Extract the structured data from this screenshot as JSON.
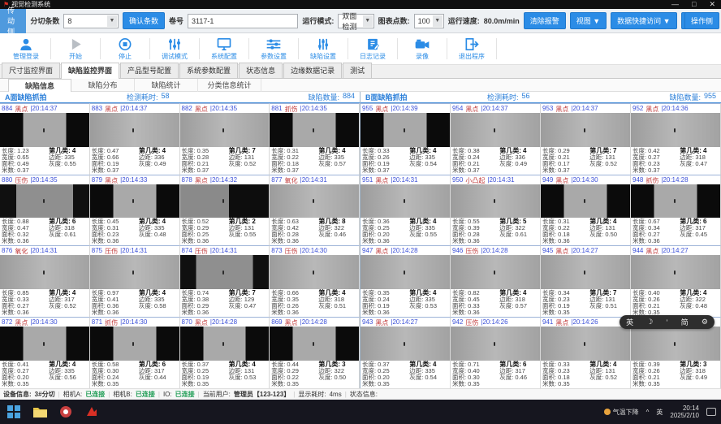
{
  "window": {
    "title": "视觉检测系统",
    "minimize": "—",
    "maximize": "□",
    "close": "✕"
  },
  "ribbon": {
    "side_left": "传动侧",
    "slit_label": "分切条数",
    "slit_value": "8",
    "confirm_btn": "确认条数",
    "roll_label": "卷号",
    "roll_value": "3117-1",
    "mode_label": "运行模式:",
    "mode_value": "双面检测",
    "points_label": "图表点数:",
    "points_value": "100",
    "speed_label": "运行速度:",
    "speed_value": "80.0m/min",
    "clear_alarm": "清除报警",
    "view_btn": "视图 ▼",
    "quick_btn": "数据快捷访问 ▼",
    "help_btn": "帮助 ▼",
    "side_right": "操作侧"
  },
  "toolbar": {
    "items": [
      {
        "label": "管理登录",
        "icon": "user-icon"
      },
      {
        "label": "开始",
        "icon": "play-icon"
      },
      {
        "label": "停止",
        "icon": "stop-icon"
      },
      {
        "label": "调试模式",
        "icon": "debug-sliders-icon"
      },
      {
        "label": "系统配置",
        "icon": "monitor-icon"
      },
      {
        "label": "参数设置",
        "icon": "h-sliders-icon"
      },
      {
        "label": "缺陷设置",
        "icon": "v-sliders-icon"
      },
      {
        "label": "日志记录",
        "icon": "log-icon"
      },
      {
        "label": "录像",
        "icon": "camera-icon"
      },
      {
        "label": "退出程序",
        "icon": "exit-icon"
      }
    ]
  },
  "tabs": {
    "main": [
      {
        "label": "尺寸监控界面"
      },
      {
        "label": "缺陷监控界面"
      },
      {
        "label": "产品型号配置"
      },
      {
        "label": "系统参数配置"
      },
      {
        "label": "状态信息"
      },
      {
        "label": "边缘数据记录"
      },
      {
        "label": "测试"
      }
    ],
    "sub": [
      {
        "label": "缺陷信息"
      },
      {
        "label": "缺陷分布"
      },
      {
        "label": "缺陷统计"
      },
      {
        "label": "分类信息统计"
      }
    ]
  },
  "cell_labels": {
    "length": "长度:",
    "width": "宽度:",
    "area": "面积:",
    "meter": "米数:",
    "cls": "第几类:",
    "margin": "边距:",
    "gray": "灰度:"
  },
  "panels": [
    {
      "title": "A面缺陷抓拍",
      "elapsed_label": "检测耗时:",
      "elapsed": "58",
      "count_label": "缺陷数量:",
      "count": "884",
      "cells": [
        {
          "id": "884",
          "type": "黑点",
          "time": "|20:14:37",
          "len": "1.23",
          "wid": "0.65",
          "area": "0.49",
          "meter": "0.37",
          "cls": "4",
          "margin": "335",
          "gray": "0.55",
          "img": 1
        },
        {
          "id": "883",
          "type": "黑点",
          "time": "|20:14:37",
          "len": "0.47",
          "wid": "0.66",
          "area": "0.19",
          "meter": "0.37",
          "cls": "4",
          "margin": "336",
          "gray": "0.49",
          "img": 2
        },
        {
          "id": "882",
          "type": "黑点",
          "time": "|20:14:35",
          "len": "0.35",
          "wid": "0.28",
          "area": "0.21",
          "meter": "0.37",
          "cls": "7",
          "margin": "131",
          "gray": "0.52",
          "img": 2
        },
        {
          "id": "881",
          "type": "抓伤",
          "time": "|20:14:35",
          "len": "0.31",
          "wid": "0.22",
          "area": "0.18",
          "meter": "0.37",
          "cls": "4",
          "margin": "335",
          "gray": "0.57",
          "img": 1
        },
        {
          "id": "880",
          "type": "压伤",
          "time": "|20:14:35",
          "len": "0.88",
          "wid": "0.47",
          "area": "0.32",
          "meter": "0.36",
          "cls": "6",
          "margin": "318",
          "gray": "0.61",
          "img": 3
        },
        {
          "id": "879",
          "type": "黑点",
          "time": "|20:14:33",
          "len": "0.45",
          "wid": "0.31",
          "area": "0.23",
          "meter": "0.36",
          "cls": "4",
          "margin": "335",
          "gray": "0.48",
          "img": 1
        },
        {
          "id": "878",
          "type": "黑点",
          "time": "|20:14:32",
          "len": "0.52",
          "wid": "0.29",
          "area": "0.25",
          "meter": "0.36",
          "cls": "2",
          "margin": "131",
          "gray": "0.55",
          "img": 4
        },
        {
          "id": "877",
          "type": "氧化",
          "time": "|20:14:31",
          "len": "0.63",
          "wid": "0.42",
          "area": "0.28",
          "meter": "0.36",
          "cls": "8",
          "margin": "322",
          "gray": "0.46",
          "img": 2
        },
        {
          "id": "876",
          "type": "氧化",
          "time": "|20:14:31",
          "len": "0.85",
          "wid": "0.33",
          "area": "0.27",
          "meter": "0.36",
          "cls": "4",
          "margin": "317",
          "gray": "0.52",
          "img": 2
        },
        {
          "id": "875",
          "type": "压伤",
          "time": "|20:14:31",
          "len": "0.97",
          "wid": "0.41",
          "area": "0.36",
          "meter": "0.36",
          "cls": "4",
          "margin": "335",
          "gray": "0.58",
          "img": 2
        },
        {
          "id": "874",
          "type": "压伤",
          "time": "|20:14:31",
          "len": "0.74",
          "wid": "0.38",
          "area": "0.29",
          "meter": "0.36",
          "cls": "7",
          "margin": "129",
          "gray": "0.47",
          "img": 3
        },
        {
          "id": "873",
          "type": "压伤",
          "time": "|20:14:30",
          "len": "0.66",
          "wid": "0.35",
          "area": "0.26",
          "meter": "0.36",
          "cls": "4",
          "margin": "318",
          "gray": "0.51",
          "img": 2
        },
        {
          "id": "872",
          "type": "黑点",
          "time": "|20:14:30",
          "len": "0.41",
          "wid": "0.27",
          "area": "0.20",
          "meter": "0.35",
          "cls": "4",
          "margin": "335",
          "gray": "0.56",
          "img": 1
        },
        {
          "id": "871",
          "type": "抓伤",
          "time": "|20:14:30",
          "len": "0.58",
          "wid": "0.30",
          "area": "0.24",
          "meter": "0.35",
          "cls": "6",
          "margin": "317",
          "gray": "0.44",
          "img": 1
        },
        {
          "id": "870",
          "type": "黑点",
          "time": "|20:14:28",
          "len": "0.37",
          "wid": "0.25",
          "area": "0.19",
          "meter": "0.35",
          "cls": "4",
          "margin": "131",
          "gray": "0.53",
          "img": 1
        },
        {
          "id": "869",
          "type": "黑点",
          "time": "|20:14:28",
          "len": "0.44",
          "wid": "0.29",
          "area": "0.22",
          "meter": "0.35",
          "cls": "3",
          "margin": "322",
          "gray": "0.50",
          "img": 1
        }
      ]
    },
    {
      "title": "B面缺陷抓拍",
      "elapsed_label": "检测耗时:",
      "elapsed": "56",
      "count_label": "缺陷数量:",
      "count": "955",
      "cells": [
        {
          "id": "955",
          "type": "黑点",
          "time": "|20:14:39",
          "len": "0.33",
          "wid": "0.26",
          "area": "0.19",
          "meter": "0.37",
          "cls": "4",
          "margin": "335",
          "gray": "0.54",
          "img": 1
        },
        {
          "id": "954",
          "type": "黑点",
          "time": "|20:14:37",
          "len": "0.38",
          "wid": "0.24",
          "area": "0.21",
          "meter": "0.37",
          "cls": "4",
          "margin": "336",
          "gray": "0.49",
          "img": 2
        },
        {
          "id": "953",
          "type": "黑点",
          "time": "|20:14:37",
          "len": "0.29",
          "wid": "0.21",
          "area": "0.17",
          "meter": "0.37",
          "cls": "7",
          "margin": "131",
          "gray": "0.52",
          "img": 2
        },
        {
          "id": "952",
          "type": "黑点",
          "time": "|20:14:36",
          "len": "0.42",
          "wid": "0.27",
          "area": "0.23",
          "meter": "0.37",
          "cls": "4",
          "margin": "318",
          "gray": "0.47",
          "img": 2
        },
        {
          "id": "951",
          "type": "黑点",
          "time": "|20:14:31",
          "len": "0.36",
          "wid": "0.25",
          "area": "0.20",
          "meter": "0.36",
          "cls": "4",
          "margin": "335",
          "gray": "0.55",
          "img": 2
        },
        {
          "id": "950",
          "type": "小凸起",
          "time": "|20:14:31",
          "len": "0.55",
          "wid": "0.39",
          "area": "0.28",
          "meter": "0.36",
          "cls": "5",
          "margin": "322",
          "gray": "0.61",
          "img": 2
        },
        {
          "id": "949",
          "type": "黑点",
          "time": "|20:14:30",
          "len": "0.31",
          "wid": "0.22",
          "area": "0.18",
          "meter": "0.36",
          "cls": "4",
          "margin": "131",
          "gray": "0.50",
          "img": 1
        },
        {
          "id": "948",
          "type": "抓伤",
          "time": "|20:14:28",
          "len": "0.67",
          "wid": "0.34",
          "area": "0.27",
          "meter": "0.36",
          "cls": "6",
          "margin": "317",
          "gray": "0.45",
          "img": 1
        },
        {
          "id": "947",
          "type": "黑点",
          "time": "|20:14:28",
          "len": "0.35",
          "wid": "0.24",
          "area": "0.19",
          "meter": "0.36",
          "cls": "4",
          "margin": "335",
          "gray": "0.53",
          "img": 2
        },
        {
          "id": "946",
          "type": "压伤",
          "time": "|20:14:28",
          "len": "0.82",
          "wid": "0.45",
          "area": "0.33",
          "meter": "0.36",
          "cls": "4",
          "margin": "318",
          "gray": "0.57",
          "img": 2
        },
        {
          "id": "945",
          "type": "黑点",
          "time": "|20:14:27",
          "len": "0.34",
          "wid": "0.23",
          "area": "0.19",
          "meter": "0.35",
          "cls": "7",
          "margin": "131",
          "gray": "0.51",
          "img": 2
        },
        {
          "id": "944",
          "type": "黑点",
          "time": "|20:14:27",
          "len": "0.40",
          "wid": "0.26",
          "area": "0.21",
          "meter": "0.35",
          "cls": "4",
          "margin": "322",
          "gray": "0.48",
          "img": 2
        },
        {
          "id": "943",
          "type": "黑点",
          "time": "|20:14:27",
          "len": "0.37",
          "wid": "0.25",
          "area": "0.20",
          "meter": "0.35",
          "cls": "4",
          "margin": "335",
          "gray": "0.54",
          "img": 2
        },
        {
          "id": "942",
          "type": "压伤",
          "time": "|20:14:26",
          "len": "0.71",
          "wid": "0.40",
          "area": "0.30",
          "meter": "0.35",
          "cls": "6",
          "margin": "317",
          "gray": "0.46",
          "img": 2
        },
        {
          "id": "941",
          "type": "黑点",
          "time": "|20:14:26",
          "len": "0.33",
          "wid": "0.23",
          "area": "0.18",
          "meter": "0.35",
          "cls": "4",
          "margin": "131",
          "gray": "0.52",
          "img": 2
        },
        {
          "id": "940",
          "type": "黑点",
          "time": "|20:14:26",
          "len": "0.39",
          "wid": "0.26",
          "area": "0.21",
          "meter": "0.35",
          "cls": "3",
          "margin": "318",
          "gray": "0.49",
          "img": 2
        }
      ]
    }
  ],
  "ime_bar": {
    "items": [
      "英",
      "☽",
      "’",
      "简",
      "⚙"
    ]
  },
  "status_bar": {
    "device_label": "设备信息:",
    "device": "3#分切",
    "cam_a_label": "相机A:",
    "cam_a": "已连接",
    "cam_b_label": "相机B:",
    "cam_b": "已连接",
    "io_label": "IO:",
    "io": "已连接",
    "user_label": "当前用户:",
    "user": "管理员【123-123】",
    "display_label": "显示耗时:",
    "display": "4ms",
    "status_label": "状态信息:"
  },
  "taskbar": {
    "icons": [
      "start-icon",
      "folder-icon",
      "app-red-icon",
      "vision-app-icon"
    ],
    "tray_weather": "气温下降",
    "tray_expand": "^",
    "tray_lang": "英",
    "tray_time": "20:14",
    "tray_date": "2025/2/10"
  }
}
